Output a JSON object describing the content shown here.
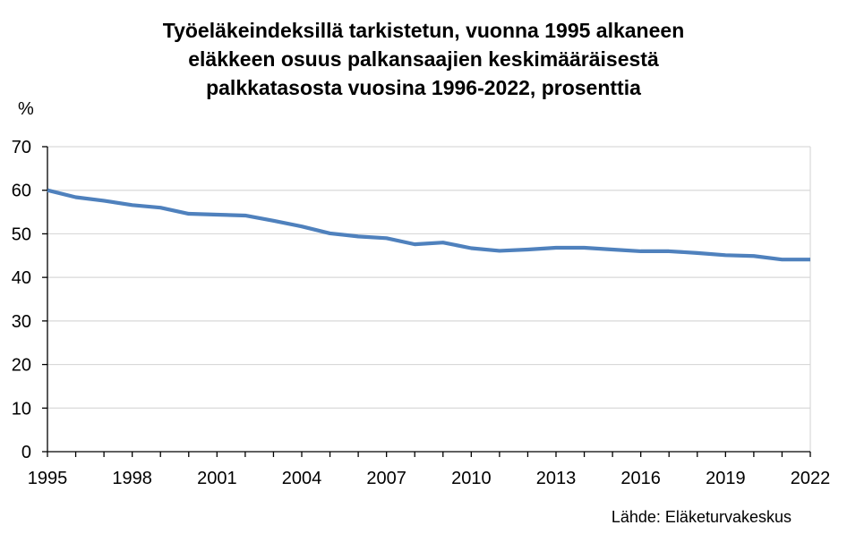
{
  "chart_data": {
    "type": "line",
    "title_lines": [
      "Työeläkeindeksillä tarkistetun, vuonna 1995 alkaneen",
      "eläkkeen osuus palkansaajien keskimääräisestä",
      "palkkatasosta vuosina 1996-2022, prosenttia"
    ],
    "ylabel": "%",
    "source": "Lähde: Eläketurvakeskus",
    "xlim": [
      1995,
      2022
    ],
    "ylim": [
      0,
      70
    ],
    "x_ticks": [
      1995,
      1998,
      2001,
      2004,
      2007,
      2010,
      2013,
      2016,
      2019,
      2022
    ],
    "y_ticks": [
      0,
      10,
      20,
      30,
      40,
      50,
      60,
      70
    ],
    "grid": "horizontal",
    "line_color": "#4f81bd",
    "series": [
      {
        "x": [
          1995,
          1996,
          1997,
          1998,
          1999,
          2000,
          2001,
          2002,
          2003,
          2004,
          2005,
          2006,
          2007,
          2008,
          2009,
          2010,
          2011,
          2012,
          2013,
          2014,
          2015,
          2016,
          2017,
          2018,
          2019,
          2020,
          2021,
          2022
        ],
        "values": [
          60.0,
          58.4,
          57.6,
          56.6,
          56.0,
          54.6,
          54.4,
          54.2,
          53.0,
          51.7,
          50.1,
          49.4,
          49.0,
          47.6,
          48.0,
          46.7,
          46.1,
          46.4,
          46.8,
          46.8,
          46.4,
          46.0,
          46.0,
          45.6,
          45.1,
          44.9,
          44.1,
          44.1
        ]
      }
    ]
  }
}
